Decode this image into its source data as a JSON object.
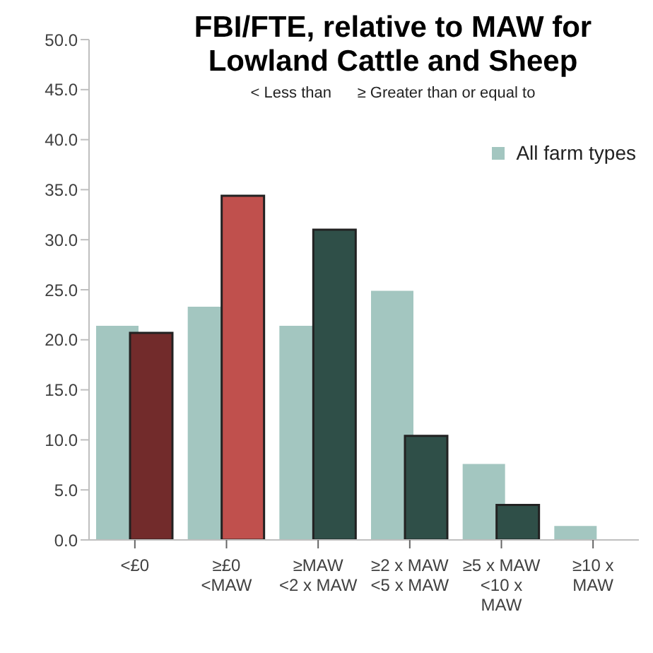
{
  "chart_data": {
    "type": "bar",
    "title": "FBI/FTE, relative to MAW for Lowland Cattle and Sheep",
    "subtitle": "< Less than      ≥ Greater than or equal to",
    "categories": [
      "<£0",
      "≥£0\n<MAW",
      "≥MAW\n<2 x MAW",
      "≥2 x MAW\n<5 x MAW",
      "≥5 x MAW\n<10 x\nMAW",
      "≥10 x\nMAW"
    ],
    "series": [
      {
        "name": "All farm types",
        "color": "#a3c6c0",
        "values": [
          21.4,
          23.3,
          21.4,
          24.9,
          7.6,
          1.4
        ]
      },
      {
        "colors": [
          "#722b2b",
          "#c0504d",
          "#2f4f48",
          "#2f4f48",
          "#2f4f48",
          "#2f4f48"
        ],
        "values": [
          20.7,
          34.4,
          31.0,
          10.4,
          3.5,
          null
        ]
      }
    ],
    "ylim": [
      0,
      50
    ],
    "yticks": [
      {
        "value": 0,
        "label": "0.0"
      },
      {
        "value": 5,
        "label": "5.0"
      },
      {
        "value": 10,
        "label": "10.0"
      },
      {
        "value": 15,
        "label": "15.0"
      },
      {
        "value": 20,
        "label": "20.0"
      },
      {
        "value": 25,
        "label": "25.0"
      },
      {
        "value": 30,
        "label": "30.0"
      },
      {
        "value": 35,
        "label": "35.0"
      },
      {
        "value": 40,
        "label": "40.0"
      },
      {
        "value": 45,
        "label": "45.0"
      },
      {
        "value": 50,
        "label": "50.0"
      }
    ],
    "grid": false,
    "legend": "top right"
  }
}
